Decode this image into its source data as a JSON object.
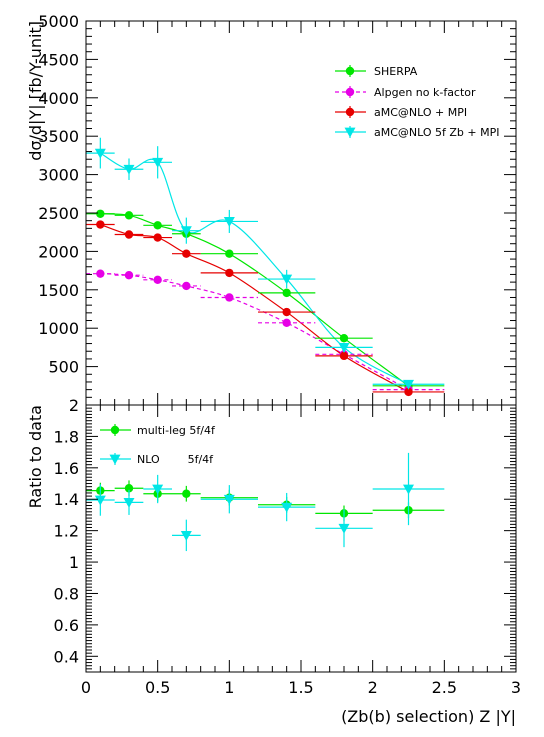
{
  "chart_data": [
    {
      "type": "scatter",
      "ylabel": "dσ/d|Y| [fb/Y-unit]",
      "ylim": [
        0,
        5000
      ],
      "yticks": [
        500,
        1000,
        1500,
        2000,
        2500,
        3000,
        3500,
        4000,
        4500,
        5000
      ],
      "ytick_labels": [
        "500",
        "1000",
        "1500",
        "2000",
        "2500",
        "3000",
        "3500",
        "4000",
        "4500",
        "5000"
      ],
      "xlim": [
        0,
        3
      ],
      "legend_placement": "top-right",
      "series": [
        {
          "name": "SHERPA",
          "color": "#00e600",
          "line_style": "solid",
          "marker": "circle",
          "x": [
            0.1,
            0.3,
            0.5,
            0.7,
            1.0,
            1.4,
            1.8,
            2.25
          ],
          "xerr": [
            0.1,
            0.1,
            0.1,
            0.1,
            0.2,
            0.2,
            0.2,
            0.25
          ],
          "y": [
            2490,
            2470,
            2340,
            2230,
            1970,
            1460,
            870,
            250
          ],
          "yerr": [
            20,
            20,
            20,
            20,
            20,
            20,
            20,
            10
          ]
        },
        {
          "name": "Alpgen no k-factor",
          "color": "#e600e6",
          "line_style": "dashed",
          "marker": "circle",
          "x": [
            0.1,
            0.3,
            0.5,
            0.7,
            1.0,
            1.4,
            1.8,
            2.25
          ],
          "xerr": [
            0.1,
            0.1,
            0.1,
            0.1,
            0.2,
            0.2,
            0.2,
            0.25
          ],
          "y": [
            1710,
            1690,
            1630,
            1550,
            1400,
            1070,
            660,
            200
          ],
          "yerr": [
            20,
            20,
            20,
            20,
            20,
            20,
            20,
            10
          ]
        },
        {
          "name": "aMC@NLO + MPI",
          "color": "#e60000",
          "line_style": "solid",
          "marker": "circle",
          "x": [
            0.1,
            0.3,
            0.5,
            0.7,
            1.0,
            1.4,
            1.8,
            2.25
          ],
          "xerr": [
            0.1,
            0.1,
            0.1,
            0.1,
            0.2,
            0.2,
            0.2,
            0.25
          ],
          "y": [
            2350,
            2220,
            2180,
            1970,
            1720,
            1210,
            640,
            170
          ],
          "yerr": [
            30,
            30,
            30,
            30,
            30,
            30,
            30,
            15
          ]
        },
        {
          "name": "aMC@NLO 5f Zb + MPI",
          "color": "#00e6e6",
          "line_style": "solid",
          "marker": "triangle-down",
          "x": [
            0.1,
            0.3,
            0.5,
            0.7,
            1.0,
            1.4,
            1.8,
            2.25
          ],
          "xerr": [
            0.1,
            0.1,
            0.1,
            0.1,
            0.2,
            0.2,
            0.2,
            0.25
          ],
          "y": [
            3280,
            3070,
            3160,
            2270,
            2390,
            1640,
            750,
            270
          ],
          "yerr": [
            200,
            140,
            210,
            170,
            150,
            120,
            60,
            30
          ]
        }
      ]
    },
    {
      "type": "scatter",
      "ylabel": "Ratio to data",
      "xlabel": "(Zb(b) selection) Z |Y|",
      "ylim": [
        0.3,
        2.0
      ],
      "yticks": [
        0.4,
        0.6,
        0.8,
        1.0,
        1.2,
        1.4,
        1.6,
        1.8
      ],
      "ytick_labels": [
        "0.4",
        "0.6",
        "0.8",
        "1",
        "1.2",
        "1.4",
        "1.6",
        "1.8"
      ],
      "xlim": [
        0,
        3
      ],
      "xticks": [
        0,
        0.5,
        1,
        1.5,
        2,
        2.5,
        3
      ],
      "xtick_labels": [
        "0",
        "0.5",
        "1",
        "1.5",
        "2",
        "2.5",
        "3"
      ],
      "legend_placement": "top-left",
      "series": [
        {
          "name": "multi-leg 5f/4f",
          "color": "#00e600",
          "marker": "circle",
          "x": [
            0.1,
            0.3,
            0.5,
            0.7,
            1.0,
            1.4,
            1.8,
            2.25
          ],
          "xerr": [
            0.1,
            0.1,
            0.1,
            0.1,
            0.2,
            0.2,
            0.2,
            0.25
          ],
          "y": [
            1.455,
            1.47,
            1.435,
            1.435,
            1.41,
            1.365,
            1.31,
            1.33
          ],
          "yerr": [
            0.05,
            0.05,
            0.05,
            0.05,
            0.05,
            0.05,
            0.05,
            0.05
          ]
        },
        {
          "name": "NLO        5f/4f",
          "color": "#00e6e6",
          "marker": "triangle-down",
          "x": [
            0.1,
            0.3,
            0.5,
            0.7,
            1.0,
            1.4,
            1.8,
            2.25
          ],
          "xerr": [
            0.1,
            0.1,
            0.1,
            0.1,
            0.2,
            0.2,
            0.2,
            0.25
          ],
          "y": [
            1.395,
            1.38,
            1.465,
            1.17,
            1.4,
            1.35,
            1.215,
            1.465
          ],
          "yerr": [
            0.1,
            0.08,
            0.09,
            0.1,
            0.09,
            0.09,
            0.12,
            0.23
          ]
        }
      ]
    }
  ],
  "top_panel_bottom_tick_label": "2"
}
